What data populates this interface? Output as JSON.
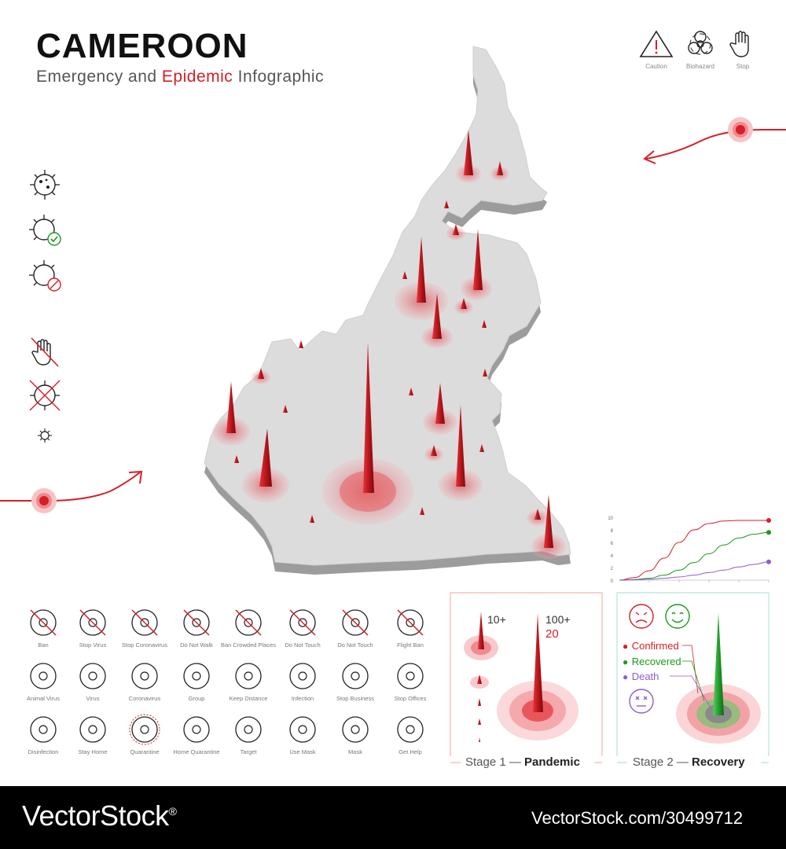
{
  "header": {
    "title": "CAMEROON",
    "subtitle_pre": "Emergency and ",
    "subtitle_accent": "Epidemic",
    "subtitle_post": " Infographic"
  },
  "top_icons": [
    {
      "icon": "caution-triangle-icon",
      "label": "Caution"
    },
    {
      "icon": "biohazard-icon",
      "label": "Biohazard"
    },
    {
      "icon": "stop-hand-icon",
      "label": "Stop"
    }
  ],
  "icon_grid": [
    {
      "icon": "ban-icon",
      "label": "Ban"
    },
    {
      "icon": "stop-virus-icon",
      "label": "Stop Virus"
    },
    {
      "icon": "stop-coronavirus-icon",
      "label": "Stop Coronavirus"
    },
    {
      "icon": "do-not-walk-icon",
      "label": "Do Not Walk"
    },
    {
      "icon": "ban-crowded-places-icon",
      "label": "Ban Crowded Places"
    },
    {
      "icon": "do-not-touch-hand-icon",
      "label": "Do Not Touch"
    },
    {
      "icon": "do-not-touch-eye-icon",
      "label": "Do Not Touch"
    },
    {
      "icon": "flight-ban-icon",
      "label": "Flight Ban"
    },
    {
      "icon": "animal-virus-icon",
      "label": "Animal Virus"
    },
    {
      "icon": "virus-icon",
      "label": "Virus"
    },
    {
      "icon": "coronavirus-icon",
      "label": "Coronavirus"
    },
    {
      "icon": "group-icon",
      "label": "Group"
    },
    {
      "icon": "keep-distance-icon",
      "label": "Keep Distance"
    },
    {
      "icon": "infection-icon",
      "label": "Infection"
    },
    {
      "icon": "stop-business-icon",
      "label": "Stop Business"
    },
    {
      "icon": "stop-offices-icon",
      "label": "Stop Offices"
    },
    {
      "icon": "disinfection-icon",
      "label": "Disinfection"
    },
    {
      "icon": "stay-home-icon",
      "label": "Stay Home"
    },
    {
      "icon": "quarantine-icon",
      "label": "Quarantine"
    },
    {
      "icon": "home-quarantine-icon",
      "label": "Home Quarantine"
    },
    {
      "icon": "target-icon",
      "label": "Target"
    },
    {
      "icon": "use-mask-icon",
      "label": "Use Mask"
    },
    {
      "icon": "mask-icon",
      "label": "Mask"
    },
    {
      "icon": "get-help-icon",
      "label": "Get Help"
    }
  ],
  "stage1": {
    "label_pre": "Stage 1 — ",
    "label_bold": "Pandemic",
    "small_value": "10+",
    "big_value": "100+",
    "count": "20"
  },
  "stage2": {
    "label_pre": "Stage 2 — ",
    "label_bold": "Recovery",
    "legend": [
      {
        "name": "Confirmed",
        "color": "#d61f26"
      },
      {
        "name": "Recovered",
        "color": "#1a9b1a"
      },
      {
        "name": "Death",
        "color": "#8e5bd6"
      }
    ]
  },
  "chart_data": {
    "type": "line",
    "x": [
      0,
      1,
      2,
      3,
      4,
      5,
      6,
      7,
      8,
      9,
      10
    ],
    "yticks": [
      "0",
      "2",
      "4",
      "6",
      "8",
      "10"
    ],
    "ylim": [
      0,
      10
    ],
    "xlim": [
      0,
      10
    ],
    "grid": false,
    "series": [
      {
        "name": "Confirmed",
        "color": "#d61f26",
        "values": [
          0,
          0.4,
          1.5,
          3.5,
          6,
          8,
          9,
          9.4,
          9.5,
          9.5,
          9.5
        ]
      },
      {
        "name": "Recovered",
        "color": "#1a9b1a",
        "values": [
          0,
          0.1,
          0.3,
          0.8,
          1.6,
          2.8,
          4.2,
          5.6,
          6.7,
          7.3,
          7.6
        ]
      },
      {
        "name": "Death",
        "color": "#8e5bd6",
        "values": [
          0,
          0.05,
          0.15,
          0.3,
          0.5,
          0.8,
          1.2,
          1.6,
          2.1,
          2.5,
          2.9
        ]
      }
    ],
    "title": "",
    "xlabel": "",
    "ylabel": ""
  },
  "footer": {
    "brand": "VectorStock",
    "brand_reg": "®",
    "right_text": "VectorStock.com/30499712"
  }
}
